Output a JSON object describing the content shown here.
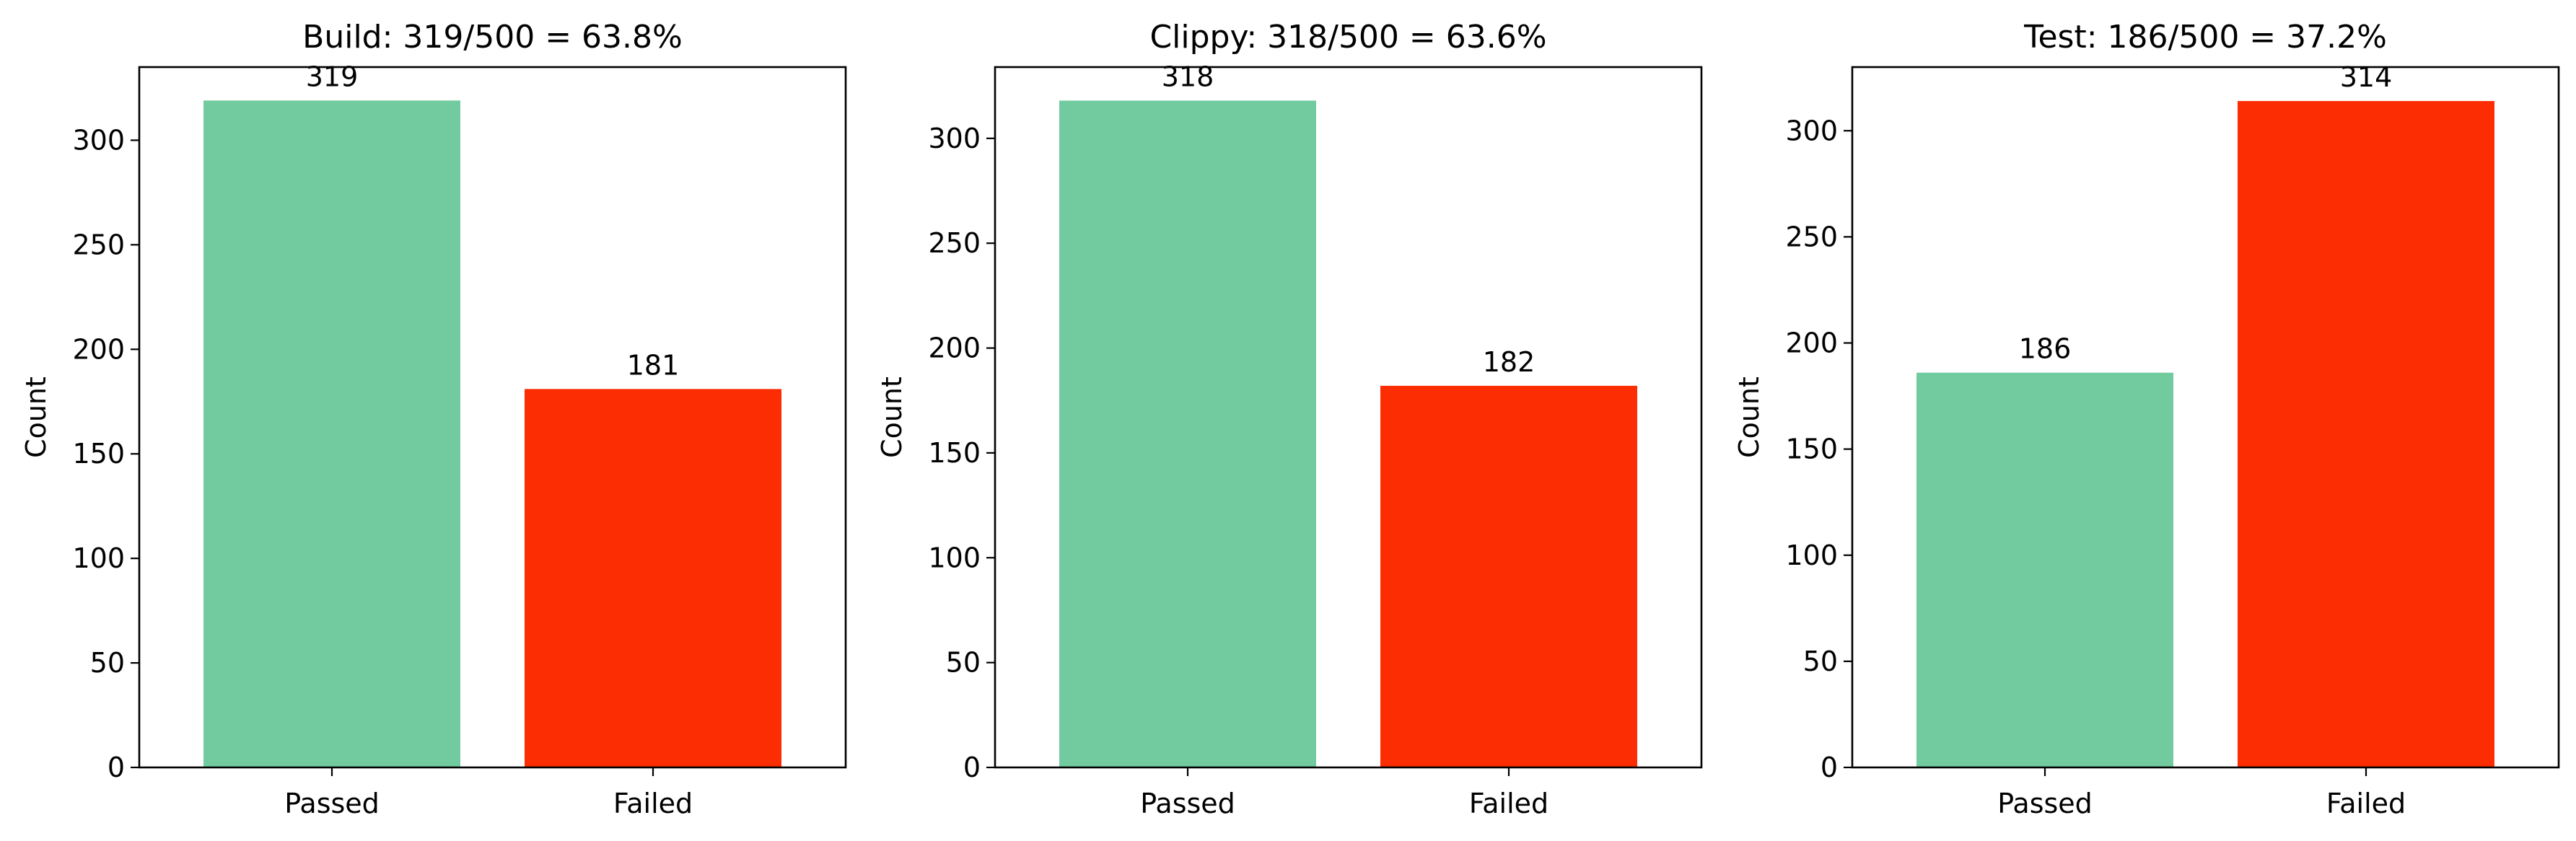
{
  "chart_data": [
    {
      "type": "bar",
      "title": "Build: 319/500 = 63.8%",
      "xlabel": "",
      "ylabel": "Count",
      "categories": [
        "Passed",
        "Failed"
      ],
      "values": [
        319,
        181
      ],
      "data_labels": [
        "319",
        "181"
      ],
      "colors": [
        "#71CB9F",
        "#FC2C03"
      ],
      "ylim": [
        0,
        335
      ],
      "yticks": [
        0,
        50,
        100,
        150,
        200,
        250,
        300
      ],
      "grid": false,
      "legend": "none"
    },
    {
      "type": "bar",
      "title": "Clippy: 318/500 = 63.6%",
      "xlabel": "",
      "ylabel": "Count",
      "categories": [
        "Passed",
        "Failed"
      ],
      "values": [
        318,
        182
      ],
      "data_labels": [
        "318",
        "182"
      ],
      "colors": [
        "#71CB9F",
        "#FC2C03"
      ],
      "ylim": [
        0,
        334
      ],
      "yticks": [
        0,
        50,
        100,
        150,
        200,
        250,
        300
      ],
      "grid": false,
      "legend": "none"
    },
    {
      "type": "bar",
      "title": "Test: 186/500 = 37.2%",
      "xlabel": "",
      "ylabel": "Count",
      "categories": [
        "Passed",
        "Failed"
      ],
      "values": [
        186,
        314
      ],
      "data_labels": [
        "186",
        "314"
      ],
      "colors": [
        "#71CB9F",
        "#FC2C03"
      ],
      "ylim": [
        0,
        330
      ],
      "yticks": [
        0,
        50,
        100,
        150,
        200,
        250,
        300
      ],
      "grid": false,
      "legend": "none"
    }
  ]
}
